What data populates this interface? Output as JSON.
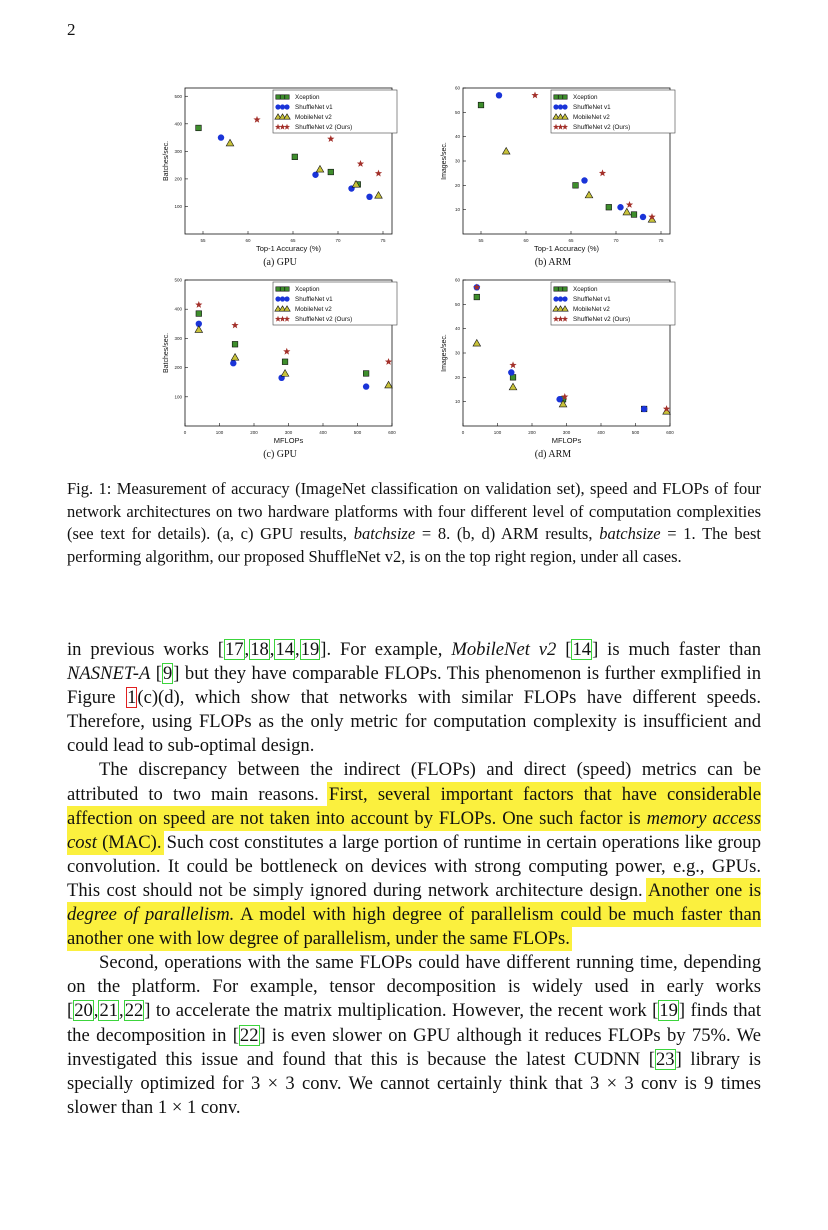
{
  "page_number": "2",
  "legend_labels": [
    "Xception",
    "ShuffleNet v1",
    "MobileNet v2",
    "ShuffleNet v2 (Ours)"
  ],
  "series_colors": {
    "Xception": "#3e8e2c",
    "ShuffleNet v1": "#1a34d8",
    "MobileNet v2": "#c8c23a",
    "ShuffleNet v2 (Ours)": "#a3302a"
  },
  "highlight_color": "#fbf03e",
  "chart_data": [
    {
      "type": "scatter",
      "subcaption": "(a) GPU",
      "xlabel": "Top-1 Accuracy (%)",
      "ylabel": "Batches/sec.",
      "xlim": [
        53,
        76
      ],
      "ylim": [
        0,
        530
      ],
      "xticks": [
        55,
        60,
        65,
        70,
        75
      ],
      "yticks": [
        100,
        200,
        300,
        400,
        500
      ],
      "series": [
        {
          "name": "Xception",
          "x": [
            54.5,
            65.2,
            69.2,
            72.2
          ],
          "y": [
            385,
            280,
            225,
            180
          ]
        },
        {
          "name": "ShuffleNet v1",
          "x": [
            57.0,
            67.5,
            71.5,
            73.5
          ],
          "y": [
            350,
            215,
            165,
            135
          ]
        },
        {
          "name": "MobileNet v2",
          "x": [
            58.0,
            68.0,
            72.0,
            74.5
          ],
          "y": [
            330,
            235,
            180,
            140
          ]
        },
        {
          "name": "ShuffleNet v2 (Ours)",
          "x": [
            61.0,
            69.2,
            72.5,
            74.5
          ],
          "y": [
            415,
            345,
            255,
            220
          ]
        }
      ]
    },
    {
      "type": "scatter",
      "subcaption": "(b) ARM",
      "xlabel": "Top-1 Accuracy (%)",
      "ylabel": "Images/sec.",
      "xlim": [
        53,
        76
      ],
      "ylim": [
        0,
        60
      ],
      "xticks": [
        55,
        60,
        65,
        70,
        75
      ],
      "yticks": [
        10,
        20,
        30,
        40,
        50,
        60
      ],
      "series": [
        {
          "name": "Xception",
          "x": [
            55.0,
            65.5,
            69.2,
            72.0
          ],
          "y": [
            53,
            20,
            11,
            8
          ]
        },
        {
          "name": "ShuffleNet v1",
          "x": [
            57.0,
            66.5,
            70.5,
            73.0
          ],
          "y": [
            57,
            22,
            11,
            7
          ]
        },
        {
          "name": "MobileNet v2",
          "x": [
            57.8,
            67.0,
            71.2,
            74.0
          ],
          "y": [
            34,
            16,
            9,
            6
          ]
        },
        {
          "name": "ShuffleNet v2 (Ours)",
          "x": [
            61.0,
            68.5,
            71.5,
            74.0
          ],
          "y": [
            57,
            25,
            12,
            7
          ]
        }
      ]
    },
    {
      "type": "scatter",
      "subcaption": "(c) GPU",
      "xlabel": "MFLOPs",
      "ylabel": "Batches/sec.",
      "xlim": [
        0,
        600
      ],
      "ylim": [
        0,
        500
      ],
      "xticks": [
        0,
        100,
        200,
        300,
        400,
        500,
        600
      ],
      "yticks": [
        100,
        200,
        300,
        400,
        500
      ],
      "series": [
        {
          "name": "Xception",
          "x": [
            40,
            145,
            290,
            525
          ],
          "y": [
            385,
            280,
            220,
            180
          ]
        },
        {
          "name": "ShuffleNet v1",
          "x": [
            40,
            140,
            280,
            525
          ],
          "y": [
            350,
            215,
            165,
            135
          ]
        },
        {
          "name": "MobileNet v2",
          "x": [
            40,
            145,
            290,
            590
          ],
          "y": [
            330,
            235,
            180,
            140
          ]
        },
        {
          "name": "ShuffleNet v2 (Ours)",
          "x": [
            40,
            145,
            295,
            590
          ],
          "y": [
            415,
            345,
            255,
            220
          ]
        }
      ]
    },
    {
      "type": "scatter",
      "subcaption": "(d) ARM",
      "xlabel": "MFLOPs",
      "ylabel": "Images/sec.",
      "xlim": [
        0,
        600
      ],
      "ylim": [
        0,
        60
      ],
      "xticks": [
        0,
        100,
        200,
        300,
        400,
        500,
        600
      ],
      "yticks": [
        10,
        20,
        30,
        40,
        50,
        60
      ],
      "series": [
        {
          "name": "Xception",
          "x": [
            40,
            145,
            290,
            525
          ],
          "y": [
            53,
            20,
            11,
            7
          ]
        },
        {
          "name": "ShuffleNet v1",
          "x": [
            40,
            140,
            280,
            525
          ],
          "y": [
            57,
            22,
            11,
            7
          ]
        },
        {
          "name": "MobileNet v2",
          "x": [
            40,
            145,
            290,
            590
          ],
          "y": [
            34,
            16,
            9,
            6
          ]
        },
        {
          "name": "ShuffleNet v2 (Ours)",
          "x": [
            40,
            145,
            295,
            590
          ],
          "y": [
            57,
            25,
            12,
            7
          ]
        }
      ]
    }
  ],
  "caption": {
    "p1": "Fig. 1: Measurement of accuracy (ImageNet classification on validation set), speed and FLOPs of four network architectures on two hardware platforms with four different level of computation complexities (see text for details). (a, c) GPU results, ",
    "batch1": "batchsize",
    "p2": " = 8. (b, d) ARM results, ",
    "batch2": "batchsize",
    "p3": " = 1. The best performing algorithm, our proposed ShuffleNet v2, is on the top right region, under all cases."
  },
  "para1": {
    "t1": "in previous works [",
    "r1": "17",
    "r2": "18",
    "r3": "14",
    "r4": "19",
    "t2": "]. For example, ",
    "m1": "MobileNet v2",
    "t3": " [",
    "r5": "14",
    "t4": "] is much faster than ",
    "m2": "NASNET-A",
    "t5": " [",
    "r6": "9",
    "t6": "] but they have comparable FLOPs. This phenomenon is further exmplified in Figure ",
    "r7": "1",
    "t7": "(c)(d), which show that networks with similar FLOPs have different speeds. Therefore, using FLOPs as the only metric for computation complexity is insufficient and could lead to sub-optimal design."
  },
  "para2": {
    "t1": "The discrepancy between the indirect (FLOPs) and direct (speed) metrics can be attributed to two main reasons. ",
    "h1": "First, several important factors that have considerable affection on speed are not taken into account by FLOPs. One such factor is ",
    "h1i": "memory access cost",
    "h1b": " (MAC).",
    "t2": " Such cost constitutes a large portion of runtime in certain operations like group convolution. It could be bottleneck on devices with strong computing power, e.g., GPUs. This cost should not be simply ignored during network architecture design. ",
    "h2": "Another one is ",
    "h2i": "degree of parallelism.",
    "h2b": " A model with high degree of parallelism could be much faster than another one with low degree of parallelism, under the same FLOPs."
  },
  "para3": {
    "t1": "Second, operations with the same FLOPs could have different running time, depending on the platform. For example, tensor decomposition is widely used in early works [",
    "r1": "20",
    "r2": "21",
    "r3": "22",
    "t2": "] to accelerate the matrix multiplication. However, the recent work [",
    "r4": "19",
    "t3": "] finds that the decomposition in [",
    "r5": "22",
    "t4": "] is even slower on GPU although it reduces FLOPs by 75%. We investigated this issue and found that this is because the latest CUDNN [",
    "r6": "23",
    "t5": "] library is specially optimized for 3 × 3 conv. We cannot certainly think that 3 × 3 conv is 9 times slower than 1 × 1 conv."
  }
}
